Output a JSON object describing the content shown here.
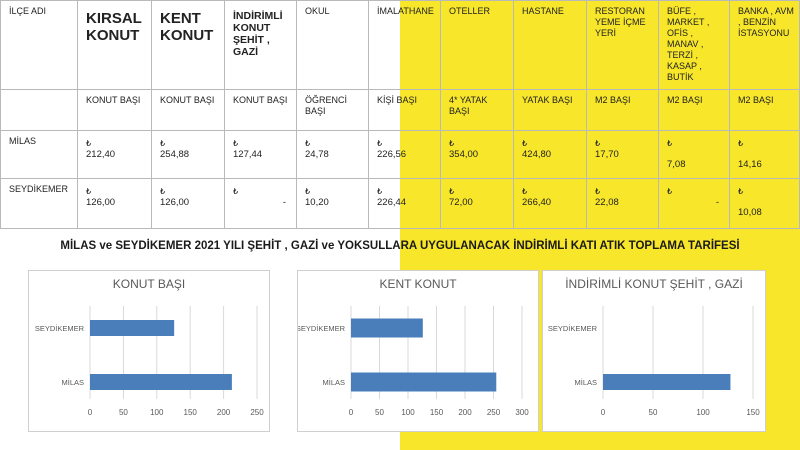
{
  "table": {
    "columns": [
      {
        "header": "İLÇE ADI",
        "unit": ""
      },
      {
        "header": "KIRSAL KONUT",
        "unit": "KONUT BAŞI"
      },
      {
        "header": "KENT KONUT",
        "unit": "KONUT BAŞI"
      },
      {
        "header": "İNDİRİMLİ KONUT ŞEHİT , GAZİ",
        "unit": "KONUT BAŞI"
      },
      {
        "header": "OKUL",
        "unit": "ÖĞRENCİ BAŞI"
      },
      {
        "header": "İMALATHANE",
        "unit": "KİŞİ BAŞI"
      },
      {
        "header": "OTELLER",
        "unit": "4* YATAK BAŞI"
      },
      {
        "header": "HASTANE",
        "unit": "YATAK BAŞI"
      },
      {
        "header": "RESTORAN YEME İÇME YERİ",
        "unit": "M2 BAŞI"
      },
      {
        "header": "BÜFE , MARKET , OFİS , MANAV , TERZİ , KASAP , BUTİK",
        "unit": "M2 BAŞI"
      },
      {
        "header": "BANKA , AVM , BENZİN İSTASYONU",
        "unit": "M2 BAŞI"
      }
    ],
    "currency_symbol": "₺",
    "rows": [
      {
        "name": "MİLAS",
        "values": [
          "212,40",
          "254,88",
          "127,44",
          "24,78",
          "226,56",
          "354,00",
          "424,80",
          "17,70",
          "7,08",
          "14,16"
        ]
      },
      {
        "name": "SEYDİKEMER",
        "values": [
          "126,00",
          "126,00",
          "-",
          "10,20",
          "226,44",
          "72,00",
          "266,40",
          "22,08",
          "-",
          "10,08"
        ]
      }
    ]
  },
  "headline": "MİLAS ve SEYDİKEMER 2021 YILI ŞEHİT , GAZİ ve YOKSULLARA UYGULANACAK İNDİRİMLİ KATI ATIK TOPLAMA TARİFESİ",
  "colors": {
    "bar": "#4a7ebb",
    "accent_yellow": "#f7e62a",
    "grid": "#d9d9d9"
  },
  "chart_data": [
    {
      "type": "bar",
      "orientation": "horizontal",
      "title": "KONUT BAŞI",
      "categories": [
        "SEYDİKEMER",
        "MİLAS"
      ],
      "values": [
        126,
        212.4
      ],
      "xlim": [
        0,
        250
      ],
      "ticks": [
        0,
        50,
        100,
        150,
        200,
        250
      ],
      "grid": true
    },
    {
      "type": "bar",
      "orientation": "horizontal",
      "title": "KENT KONUT",
      "categories": [
        "SEYDİKEMER",
        "MİLAS"
      ],
      "values": [
        126,
        254.88
      ],
      "xlim": [
        0,
        300
      ],
      "ticks": [
        0,
        50,
        100,
        150,
        200,
        250,
        300
      ],
      "grid": true
    },
    {
      "type": "bar",
      "orientation": "horizontal",
      "title": "İNDİRİMLİ KONUT ŞEHİT , GAZİ",
      "categories": [
        "SEYDİKEMER",
        "MİLAS"
      ],
      "values": [
        0,
        127.44
      ],
      "xlim": [
        0,
        150
      ],
      "ticks": [
        0,
        50,
        100,
        150
      ],
      "grid": true
    }
  ]
}
